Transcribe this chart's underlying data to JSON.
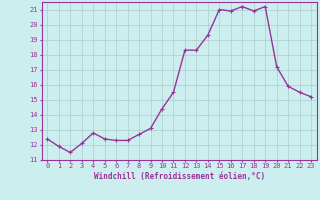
{
  "x": [
    0,
    1,
    2,
    3,
    4,
    5,
    6,
    7,
    8,
    9,
    10,
    11,
    12,
    13,
    14,
    15,
    16,
    17,
    18,
    19,
    20,
    21,
    22,
    23
  ],
  "y": [
    12.4,
    11.9,
    11.5,
    12.1,
    12.8,
    12.4,
    12.3,
    12.3,
    12.7,
    13.1,
    14.4,
    15.5,
    18.3,
    18.3,
    19.3,
    21.0,
    20.9,
    21.2,
    20.9,
    21.2,
    17.2,
    15.9,
    15.5,
    15.2
  ],
  "line_color": "#993399",
  "marker": "+",
  "marker_color": "#993399",
  "bg_color": "#cceeee",
  "grid_color": "#aacccc",
  "xlabel": "Windchill (Refroidissement éolien,°C)",
  "xlabel_color": "#993399",
  "tick_color": "#993399",
  "ylim": [
    11,
    21.5
  ],
  "yticks": [
    11,
    12,
    13,
    14,
    15,
    16,
    17,
    18,
    19,
    20,
    21
  ],
  "xticks": [
    0,
    1,
    2,
    3,
    4,
    5,
    6,
    7,
    8,
    9,
    10,
    11,
    12,
    13,
    14,
    15,
    16,
    17,
    18,
    19,
    20,
    21,
    22,
    23
  ],
  "spine_color": "#993399",
  "font_name": "monospace",
  "tick_fontsize": 5.0,
  "xlabel_fontsize": 5.5,
  "linewidth": 1.0,
  "markersize": 3.5
}
